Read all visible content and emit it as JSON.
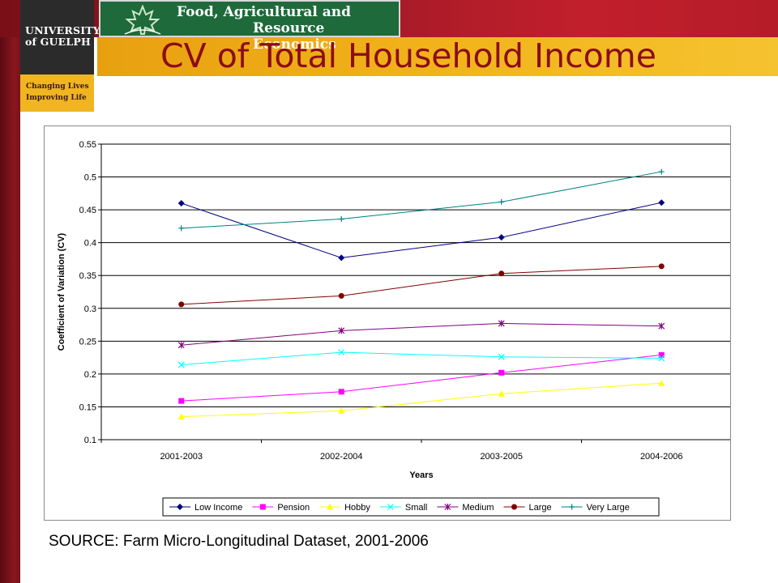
{
  "header": {
    "university_line1": "UNIVERSITY",
    "university_line2": "of GUELPH",
    "tagline_line1": "Changing Lives",
    "tagline_line2": "Improving Life",
    "department_line1": "Food, Agricultural and",
    "department_line2": "Resource Economics",
    "slide_title": "CV of Total Household Income"
  },
  "colors": {
    "title_red": "#8b0d18",
    "banner_gold": "#f2b51c",
    "department_green": "#1e6a3a"
  },
  "chart_data": {
    "type": "line",
    "title": "",
    "xlabel": "Years",
    "ylabel": "Coefficient of Variation (CV)",
    "categories": [
      "2001-2003",
      "2002-2004",
      "2003-2005",
      "2004-2006"
    ],
    "ylim": [
      0.1,
      0.55
    ],
    "yticks": [
      "0.1",
      "0.15",
      "0.2",
      "0.25",
      "0.3",
      "0.35",
      "0.4",
      "0.45",
      "0.5",
      "0.55"
    ],
    "grid": "horizontal",
    "legend_position": "bottom",
    "series": [
      {
        "name": "Low Income",
        "values": [
          0.46,
          0.377,
          0.408,
          0.461
        ],
        "color": "#000080",
        "marker": "diamond"
      },
      {
        "name": "Pension",
        "values": [
          0.159,
          0.173,
          0.202,
          0.229
        ],
        "color": "#ff00ff",
        "marker": "square"
      },
      {
        "name": "Hobby",
        "values": [
          0.135,
          0.144,
          0.17,
          0.186
        ],
        "color": "#ffff00",
        "marker": "triangle"
      },
      {
        "name": "Small",
        "values": [
          0.214,
          0.233,
          0.226,
          0.224
        ],
        "color": "#00ffff",
        "marker": "x"
      },
      {
        "name": "Medium",
        "values": [
          0.244,
          0.266,
          0.277,
          0.273
        ],
        "color": "#800080",
        "marker": "star"
      },
      {
        "name": "Large",
        "values": [
          0.306,
          0.319,
          0.353,
          0.364
        ],
        "color": "#800000",
        "marker": "circle"
      },
      {
        "name": "Very Large",
        "values": [
          0.422,
          0.436,
          0.462,
          0.508
        ],
        "color": "#008080",
        "marker": "plus"
      }
    ]
  },
  "source": "SOURCE: Farm Micro-Longitudinal Dataset, 2001-2006"
}
